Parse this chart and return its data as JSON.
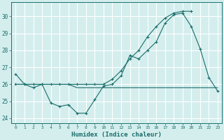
{
  "xlabel": "Humidex (Indice chaleur)",
  "ylabel": "",
  "background_color": "#d4eeee",
  "grid_color": "#ffffff",
  "line_color": "#1a6e6a",
  "xlim": [
    -0.5,
    23.5
  ],
  "ylim": [
    23.7,
    30.85
  ],
  "yticks": [
    24,
    25,
    26,
    27,
    28,
    29,
    30
  ],
  "xticks": [
    0,
    1,
    2,
    3,
    4,
    5,
    6,
    7,
    8,
    9,
    10,
    11,
    12,
    13,
    14,
    15,
    16,
    17,
    18,
    19,
    20,
    21,
    22,
    23
  ],
  "series1": [
    26.6,
    26.0,
    25.8,
    26.0,
    24.9,
    24.7,
    24.8,
    24.3,
    24.3,
    25.1,
    25.9,
    26.0,
    26.5,
    27.7,
    27.5,
    28.0,
    28.5,
    29.6,
    30.1,
    30.2,
    29.4,
    28.1,
    26.4,
    25.6
  ],
  "series2": [
    26.0,
    26.0,
    26.0,
    26.0,
    26.0,
    26.0,
    26.0,
    25.8,
    25.8,
    25.8,
    25.8,
    25.8,
    25.8,
    25.8,
    25.8,
    25.8,
    25.8,
    25.8,
    25.8,
    25.8,
    25.8,
    25.8,
    25.8,
    25.8
  ],
  "series3_x": [
    0,
    1,
    2,
    3,
    4,
    5,
    6,
    7,
    8,
    9,
    10,
    11,
    12,
    13,
    14,
    15,
    16,
    17,
    18,
    19,
    20
  ],
  "series3_y": [
    26.0,
    26.0,
    26.0,
    26.0,
    26.0,
    26.0,
    26.0,
    26.0,
    26.0,
    26.0,
    26.0,
    26.3,
    26.8,
    27.5,
    28.0,
    28.8,
    29.4,
    29.9,
    30.2,
    30.3,
    30.3
  ]
}
